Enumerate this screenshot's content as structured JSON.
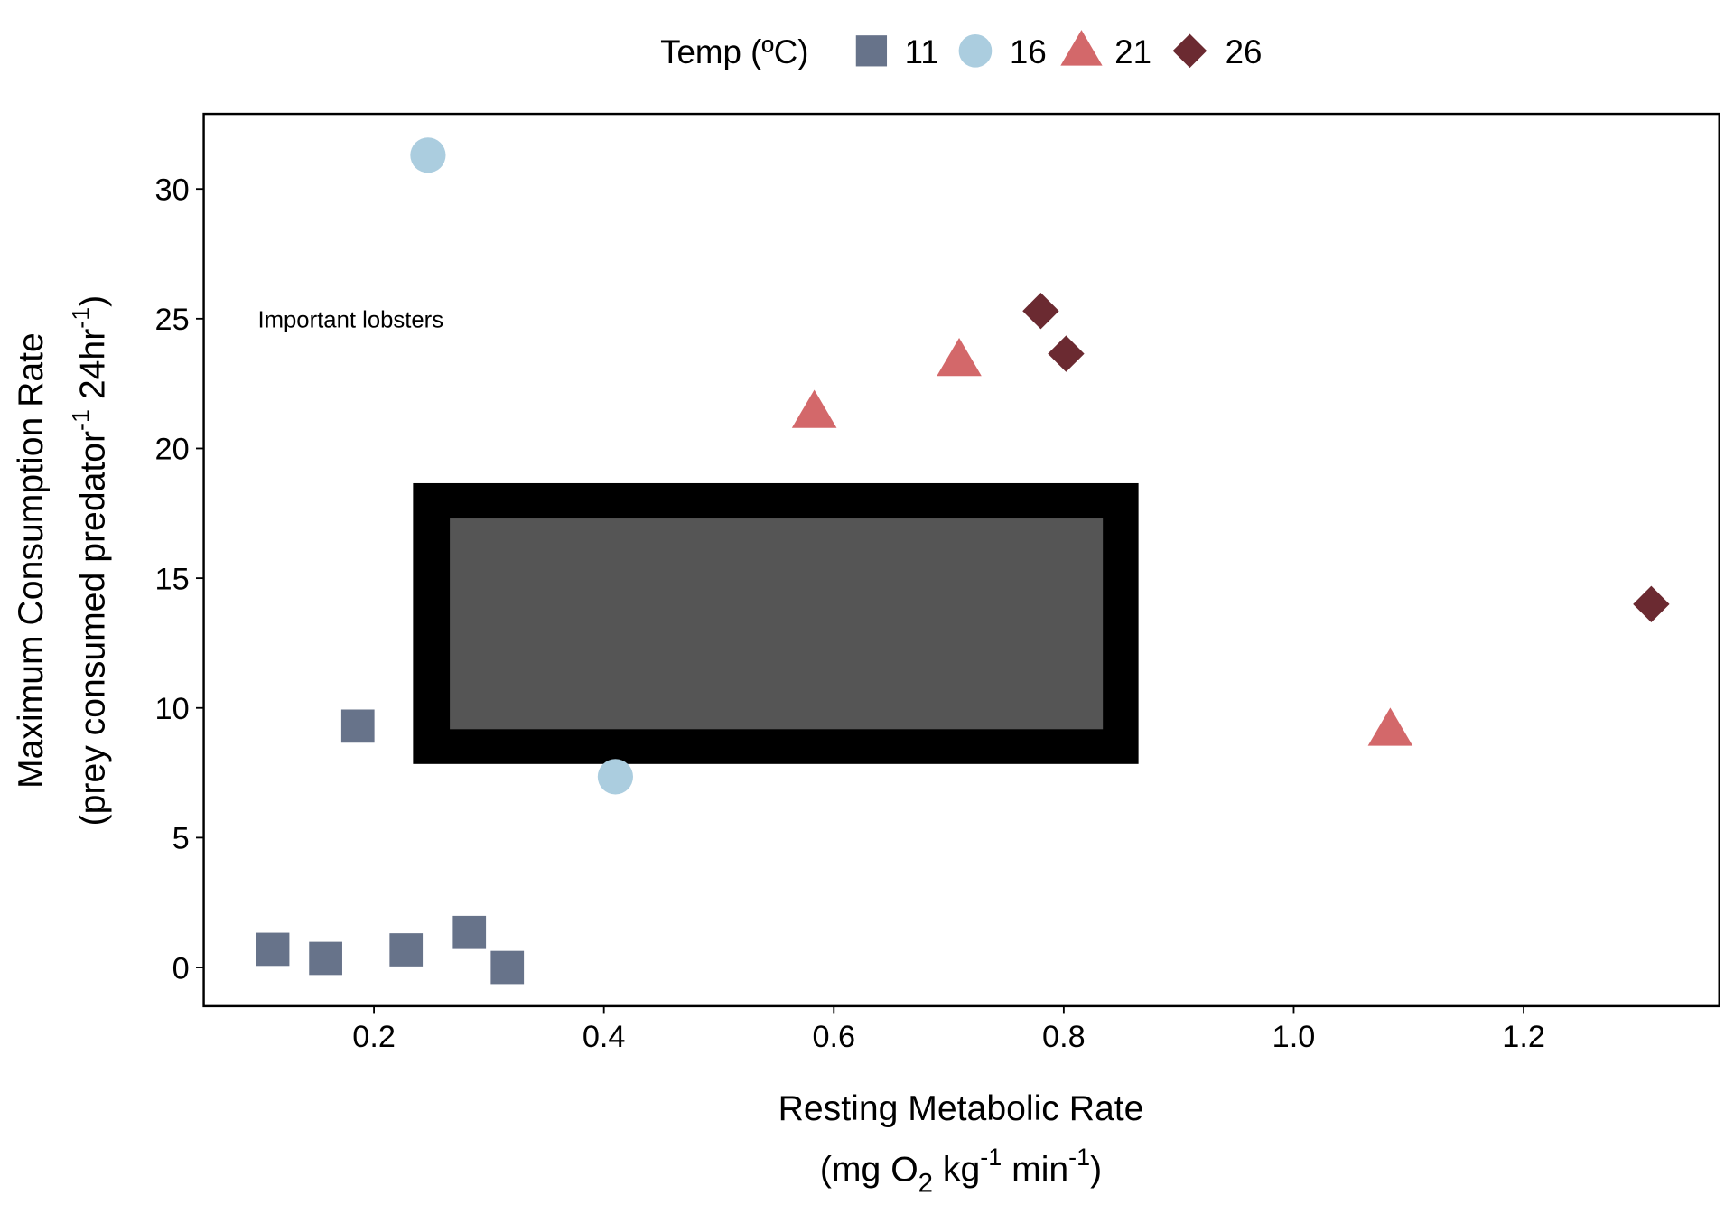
{
  "chart_data": {
    "type": "scatter",
    "title": "",
    "xlabel": "Resting Metabolic Rate",
    "xlabel_line2": {
      "pre": "(mg O",
      "sub": "2",
      "mid": " kg",
      "sup1": "-1",
      "mid2": " min",
      "sup2": "-1",
      "post": ")"
    },
    "ylabel": "Maximum Consumption Rate",
    "ylabel_line2": {
      "pre": "(prey consumed predator",
      "sup1": "-1",
      "mid": " 24hr",
      "sup2": "-1",
      "post": ")"
    },
    "xlim": [
      0.055,
      1.375
    ],
    "ylim": [
      -1.5,
      32.9
    ],
    "xticks": [
      0.2,
      0.4,
      0.6,
      0.8,
      1.0,
      1.2
    ],
    "xtick_labels": [
      "0.2",
      "0.4",
      "0.6",
      "0.8",
      "1.0",
      "1.2"
    ],
    "yticks": [
      0,
      5,
      10,
      15,
      20,
      25,
      30
    ],
    "ytick_labels": [
      "0",
      "5",
      "10",
      "15",
      "20",
      "25",
      "30"
    ],
    "grid": false,
    "legend": {
      "title": "Temp (ºC)",
      "placement": "top",
      "entries": [
        "11",
        "16",
        "21",
        "26"
      ]
    },
    "series": [
      {
        "name": "11",
        "shape": "square",
        "color": "#67738a",
        "points": [
          [
            0.112,
            0.7
          ],
          [
            0.158,
            0.35
          ],
          [
            0.228,
            0.68
          ],
          [
            0.283,
            1.35
          ],
          [
            0.316,
            0.0
          ],
          [
            0.186,
            9.3
          ]
        ]
      },
      {
        "name": "16",
        "shape": "circle",
        "color": "#abcddf",
        "points": [
          [
            0.247,
            31.3
          ],
          [
            0.41,
            7.35
          ]
        ]
      },
      {
        "name": "21",
        "shape": "triangle",
        "color": "#d3686a",
        "points": [
          [
            0.583,
            21.4
          ],
          [
            0.709,
            23.4
          ],
          [
            1.084,
            9.15
          ]
        ]
      },
      {
        "name": "26",
        "shape": "diamond",
        "color": "#6b2a31",
        "points": [
          [
            0.78,
            25.3
          ],
          [
            0.802,
            23.65
          ],
          [
            1.311,
            14.0
          ]
        ]
      }
    ],
    "annotations": [
      {
        "text": "Important lobsters",
        "x": 0.099,
        "y": 24.97
      }
    ],
    "overlay_box": {
      "x": [
        0.234,
        0.865
      ],
      "y": [
        7.84,
        18.66
      ],
      "inner_x": [
        0.266,
        0.834
      ],
      "inner_y": [
        9.18,
        17.3
      ],
      "outer_color": "#000000",
      "inner_color": "#555555"
    }
  }
}
